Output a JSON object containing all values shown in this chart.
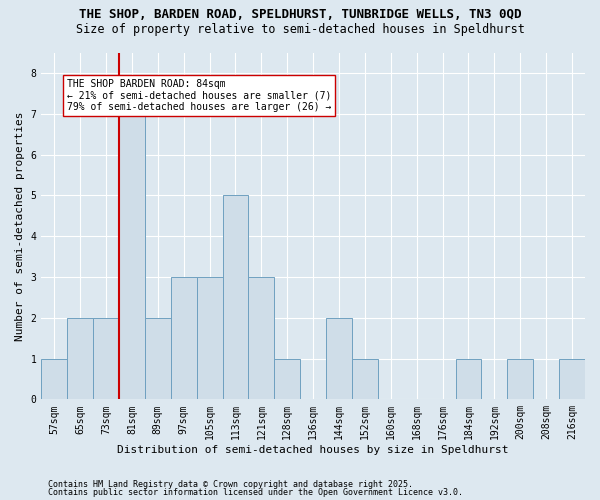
{
  "title1": "THE SHOP, BARDEN ROAD, SPELDHURST, TUNBRIDGE WELLS, TN3 0QD",
  "title2": "Size of property relative to semi-detached houses in Speldhurst",
  "xlabel": "Distribution of semi-detached houses by size in Speldhurst",
  "ylabel": "Number of semi-detached properties",
  "categories": [
    "57sqm",
    "65sqm",
    "73sqm",
    "81sqm",
    "89sqm",
    "97sqm",
    "105sqm",
    "113sqm",
    "121sqm",
    "128sqm",
    "136sqm",
    "144sqm",
    "152sqm",
    "160sqm",
    "168sqm",
    "176sqm",
    "184sqm",
    "192sqm",
    "200sqm",
    "208sqm",
    "216sqm"
  ],
  "values": [
    1,
    2,
    2,
    7,
    2,
    3,
    3,
    5,
    3,
    1,
    0,
    2,
    1,
    0,
    0,
    0,
    1,
    0,
    1,
    0,
    1
  ],
  "bar_color": "#cfdde8",
  "bar_edge_color": "#6fa0c0",
  "subject_index": 3,
  "subject_line_color": "#cc0000",
  "annotation_box_facecolor": "#ffffff",
  "annotation_box_edgecolor": "#cc0000",
  "annotation_text_line1": "THE SHOP BARDEN ROAD: 84sqm",
  "annotation_text_line2": "← 21% of semi-detached houses are smaller (7)",
  "annotation_text_line3": "79% of semi-detached houses are larger (26) →",
  "ylim": [
    0,
    8.5
  ],
  "yticks": [
    0,
    1,
    2,
    3,
    4,
    5,
    6,
    7,
    8
  ],
  "footer1": "Contains HM Land Registry data © Crown copyright and database right 2025.",
  "footer2": "Contains public sector information licensed under the Open Government Licence v3.0.",
  "background_color": "#dde8f0",
  "plot_background": "#dde8f0",
  "grid_color": "#ffffff",
  "title_fontsize": 9,
  "subtitle_fontsize": 8.5,
  "axis_label_fontsize": 8,
  "tick_fontsize": 7,
  "annotation_fontsize": 7,
  "footer_fontsize": 6
}
